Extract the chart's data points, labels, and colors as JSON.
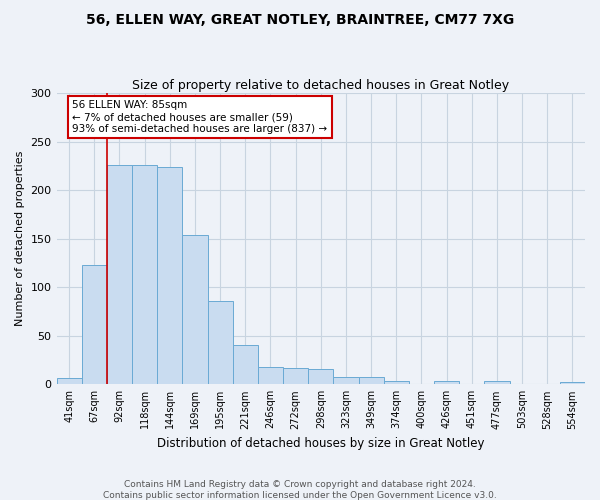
{
  "title_line1": "56, ELLEN WAY, GREAT NOTLEY, BRAINTREE, CM77 7XG",
  "title_line2": "Size of property relative to detached houses in Great Notley",
  "xlabel": "Distribution of detached houses by size in Great Notley",
  "ylabel": "Number of detached properties",
  "bar_labels": [
    "41sqm",
    "67sqm",
    "92sqm",
    "118sqm",
    "144sqm",
    "169sqm",
    "195sqm",
    "221sqm",
    "246sqm",
    "272sqm",
    "298sqm",
    "323sqm",
    "349sqm",
    "374sqm",
    "400sqm",
    "426sqm",
    "451sqm",
    "477sqm",
    "503sqm",
    "528sqm",
    "554sqm"
  ],
  "bar_values": [
    7,
    123,
    226,
    226,
    224,
    154,
    86,
    41,
    18,
    17,
    16,
    8,
    8,
    3,
    0,
    3,
    0,
    3,
    0,
    0,
    2
  ],
  "bar_color": "#c9dcf0",
  "bar_edge_color": "#6aaad4",
  "annotation_text_line1": "56 ELLEN WAY: 85sqm",
  "annotation_text_line2": "← 7% of detached houses are smaller (59)",
  "annotation_text_line3": "93% of semi-detached houses are larger (837) →",
  "annotation_box_color": "#ffffff",
  "annotation_box_edge": "#cc0000",
  "vline_color": "#cc0000",
  "grid_color": "#c8d4e0",
  "background_color": "#eef2f8",
  "footer_line1": "Contains HM Land Registry data © Crown copyright and database right 2024.",
  "footer_line2": "Contains public sector information licensed under the Open Government Licence v3.0.",
  "ylim": [
    0,
    300
  ],
  "yticks": [
    0,
    50,
    100,
    150,
    200,
    250,
    300
  ]
}
